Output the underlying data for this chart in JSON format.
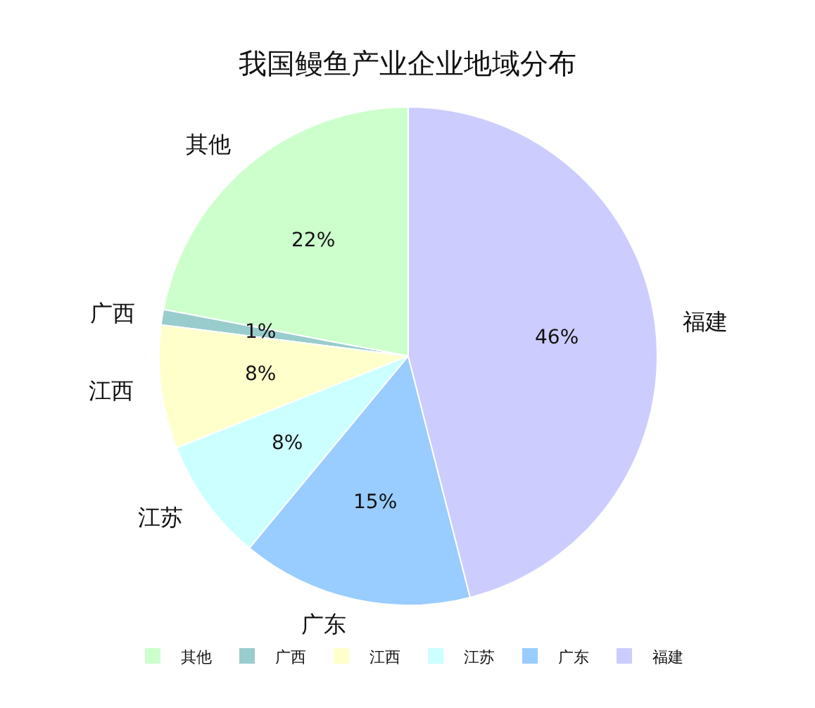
{
  "chart_data": {
    "type": "pie",
    "title": "我国鳗鱼产业企业地域分布",
    "categories": [
      "其他",
      "广西",
      "江西",
      "江苏",
      "广东",
      "福建"
    ],
    "values": [
      22,
      1,
      8,
      8,
      15,
      46
    ],
    "colors": [
      "#ccffcc",
      "#99cccc",
      "#ffffcc",
      "#ccffff",
      "#99ccff",
      "#ccccff"
    ],
    "value_labels": [
      "22%",
      "1%",
      "8%",
      "8%",
      "15%",
      "46%"
    ],
    "legend": "bottom"
  }
}
